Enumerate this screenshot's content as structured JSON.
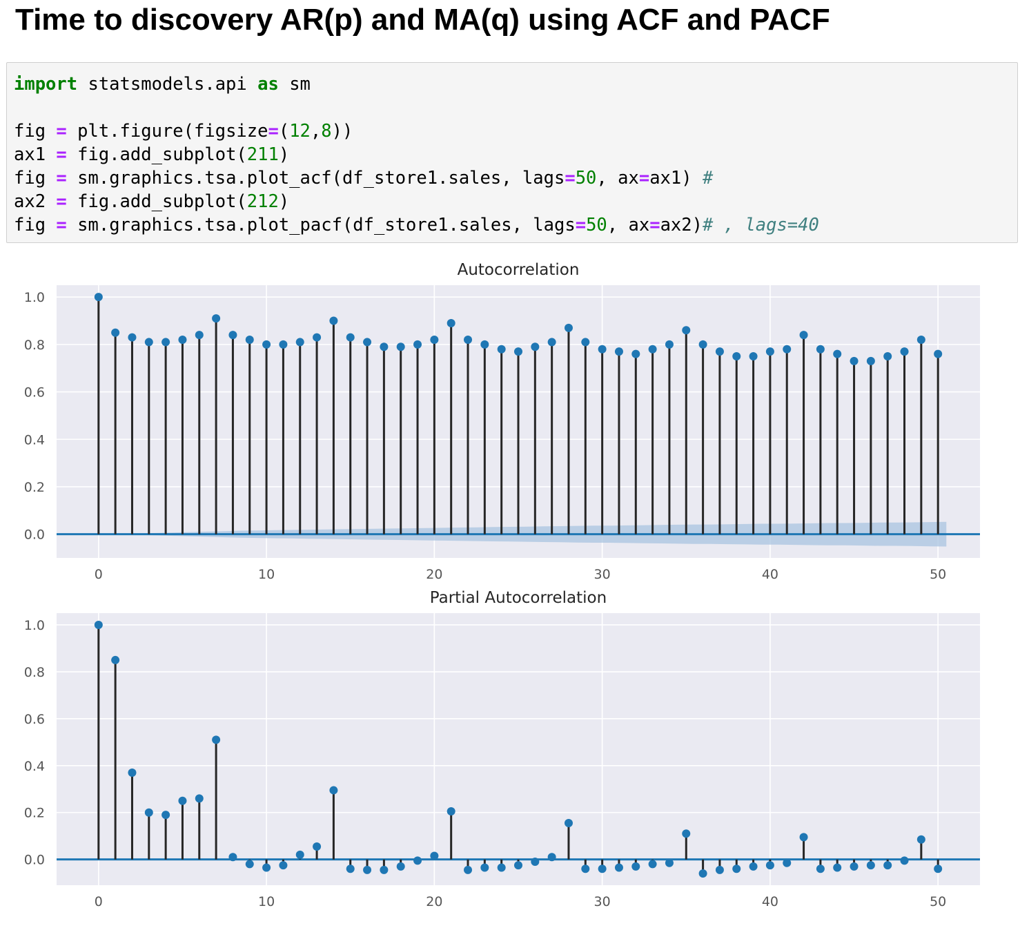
{
  "heading": "Time to discovery AR(p) and MA(q) using ACF and PACF",
  "code": [
    [
      {
        "t": "kw",
        "v": "import"
      },
      {
        "t": "plain",
        "v": " statsmodels.api "
      },
      {
        "t": "kw",
        "v": "as"
      },
      {
        "t": "plain",
        "v": " sm"
      }
    ],
    [],
    [
      {
        "t": "plain",
        "v": "fig "
      },
      {
        "t": "op",
        "v": "="
      },
      {
        "t": "plain",
        "v": " plt.figure(figsize"
      },
      {
        "t": "op",
        "v": "="
      },
      {
        "t": "plain",
        "v": "("
      },
      {
        "t": "num",
        "v": "12"
      },
      {
        "t": "plain",
        "v": ","
      },
      {
        "t": "num",
        "v": "8"
      },
      {
        "t": "plain",
        "v": "))"
      }
    ],
    [
      {
        "t": "plain",
        "v": "ax1 "
      },
      {
        "t": "op",
        "v": "="
      },
      {
        "t": "plain",
        "v": " fig.add_subplot("
      },
      {
        "t": "num",
        "v": "211"
      },
      {
        "t": "plain",
        "v": ")"
      }
    ],
    [
      {
        "t": "plain",
        "v": "fig "
      },
      {
        "t": "op",
        "v": "="
      },
      {
        "t": "plain",
        "v": " sm.graphics.tsa.plot_acf(df_store1.sales, lags"
      },
      {
        "t": "op",
        "v": "="
      },
      {
        "t": "num",
        "v": "50"
      },
      {
        "t": "plain",
        "v": ", ax"
      },
      {
        "t": "op",
        "v": "="
      },
      {
        "t": "plain",
        "v": "ax1) "
      },
      {
        "t": "cm",
        "v": "#"
      }
    ],
    [
      {
        "t": "plain",
        "v": "ax2 "
      },
      {
        "t": "op",
        "v": "="
      },
      {
        "t": "plain",
        "v": " fig.add_subplot("
      },
      {
        "t": "num",
        "v": "212"
      },
      {
        "t": "plain",
        "v": ")"
      }
    ],
    [
      {
        "t": "plain",
        "v": "fig "
      },
      {
        "t": "op",
        "v": "="
      },
      {
        "t": "plain",
        "v": " sm.graphics.tsa.plot_pacf(df_store1.sales, lags"
      },
      {
        "t": "op",
        "v": "="
      },
      {
        "t": "num",
        "v": "50"
      },
      {
        "t": "plain",
        "v": ", ax"
      },
      {
        "t": "op",
        "v": "="
      },
      {
        "t": "plain",
        "v": "ax2)"
      },
      {
        "t": "cm",
        "v": "# , lags=40"
      }
    ]
  ],
  "colors": {
    "plot_bg": "#eaeaf2",
    "grid": "#ffffff",
    "stem": "#262626",
    "marker": "#1f77b4",
    "baseline": "#1f77b4",
    "confint": "#a9c4e0"
  },
  "chart_data": [
    {
      "type": "stem",
      "title": "Autocorrelation",
      "xlabel": "",
      "ylabel": "",
      "xlim": [
        -2.5,
        52.5
      ],
      "ylim": [
        -0.1,
        1.05
      ],
      "xticks": [
        0,
        10,
        20,
        30,
        40,
        50
      ],
      "yticks": [
        0.0,
        0.2,
        0.4,
        0.6,
        0.8,
        1.0
      ],
      "ytick_labels": [
        "0.0",
        "0.2",
        "0.4",
        "0.6",
        "0.8",
        "1.0"
      ],
      "grid": true,
      "lags": [
        0,
        1,
        2,
        3,
        4,
        5,
        6,
        7,
        8,
        9,
        10,
        11,
        12,
        13,
        14,
        15,
        16,
        17,
        18,
        19,
        20,
        21,
        22,
        23,
        24,
        25,
        26,
        27,
        28,
        29,
        30,
        31,
        32,
        33,
        34,
        35,
        36,
        37,
        38,
        39,
        40,
        41,
        42,
        43,
        44,
        45,
        46,
        47,
        48,
        49,
        50
      ],
      "values": [
        1.0,
        0.85,
        0.83,
        0.81,
        0.81,
        0.82,
        0.84,
        0.91,
        0.84,
        0.82,
        0.8,
        0.8,
        0.81,
        0.83,
        0.9,
        0.83,
        0.81,
        0.79,
        0.79,
        0.8,
        0.82,
        0.89,
        0.82,
        0.8,
        0.78,
        0.77,
        0.79,
        0.81,
        0.87,
        0.81,
        0.78,
        0.77,
        0.76,
        0.78,
        0.8,
        0.86,
        0.8,
        0.77,
        0.75,
        0.75,
        0.77,
        0.78,
        0.84,
        0.78,
        0.76,
        0.73,
        0.73,
        0.75,
        0.77,
        0.82,
        0.76
      ],
      "confint_halfwidth": [
        0.0,
        0.001,
        0.003,
        0.005,
        0.007,
        0.009,
        0.011,
        0.013,
        0.015,
        0.016,
        0.017,
        0.018,
        0.019,
        0.02,
        0.021,
        0.022,
        0.023,
        0.024,
        0.025,
        0.026,
        0.027,
        0.028,
        0.029,
        0.03,
        0.031,
        0.032,
        0.033,
        0.034,
        0.035,
        0.036,
        0.036,
        0.037,
        0.038,
        0.039,
        0.04,
        0.041,
        0.041,
        0.042,
        0.043,
        0.044,
        0.044,
        0.045,
        0.046,
        0.047,
        0.047,
        0.048,
        0.049,
        0.049,
        0.05,
        0.051,
        0.052
      ]
    },
    {
      "type": "stem",
      "title": "Partial Autocorrelation",
      "xlabel": "",
      "ylabel": "",
      "xlim": [
        -2.5,
        52.5
      ],
      "ylim": [
        -0.11,
        1.05
      ],
      "xticks": [
        0,
        10,
        20,
        30,
        40,
        50
      ],
      "yticks": [
        0.0,
        0.2,
        0.4,
        0.6,
        0.8,
        1.0
      ],
      "ytick_labels": [
        "0.0",
        "0.2",
        "0.4",
        "0.6",
        "0.8",
        "1.0"
      ],
      "grid": true,
      "lags": [
        0,
        1,
        2,
        3,
        4,
        5,
        6,
        7,
        8,
        9,
        10,
        11,
        12,
        13,
        14,
        15,
        16,
        17,
        18,
        19,
        20,
        21,
        22,
        23,
        24,
        25,
        26,
        27,
        28,
        29,
        30,
        31,
        32,
        33,
        34,
        35,
        36,
        37,
        38,
        39,
        40,
        41,
        42,
        43,
        44,
        45,
        46,
        47,
        48,
        49,
        50
      ],
      "values": [
        1.0,
        0.85,
        0.37,
        0.2,
        0.19,
        0.25,
        0.26,
        0.51,
        0.01,
        -0.02,
        -0.035,
        -0.025,
        0.02,
        0.055,
        0.295,
        -0.04,
        -0.045,
        -0.045,
        -0.03,
        -0.005,
        0.015,
        0.205,
        -0.045,
        -0.035,
        -0.035,
        -0.025,
        -0.01,
        0.01,
        0.155,
        -0.04,
        -0.04,
        -0.035,
        -0.03,
        -0.02,
        -0.015,
        0.11,
        -0.06,
        -0.045,
        -0.04,
        -0.03,
        -0.025,
        -0.015,
        0.095,
        -0.04,
        -0.035,
        -0.03,
        -0.025,
        -0.025,
        -0.005,
        0.085,
        -0.04
      ],
      "confint_halfwidth": [
        0.0,
        0.0,
        0.0,
        0.0,
        0.0,
        0.0,
        0.0,
        0.0,
        0.0,
        0.0,
        0.0,
        0.0,
        0.0,
        0.0,
        0.0,
        0.0,
        0.0,
        0.0,
        0.0,
        0.0,
        0.0,
        0.0,
        0.0,
        0.0,
        0.0,
        0.0,
        0.0,
        0.0,
        0.0,
        0.0,
        0.0,
        0.0,
        0.0,
        0.0,
        0.0,
        0.0,
        0.0,
        0.0,
        0.0,
        0.0,
        0.0,
        0.0,
        0.0,
        0.0,
        0.0,
        0.0,
        0.0,
        0.0,
        0.0,
        0.0,
        0.0
      ]
    }
  ]
}
